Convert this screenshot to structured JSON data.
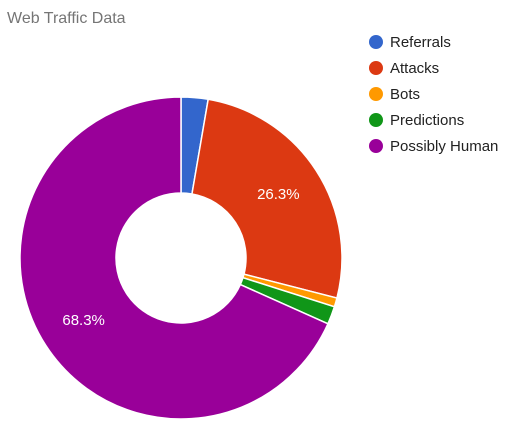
{
  "chart_data": {
    "type": "pie",
    "style": "donut",
    "title": "Web Traffic Data",
    "legend_position": "right",
    "slices": [
      {
        "label": "Referrals",
        "value": 2.7,
        "color": "#3366cc"
      },
      {
        "label": "Attacks",
        "value": 26.3,
        "color": "#dc3912",
        "data_label": "26.3%"
      },
      {
        "label": "Bots",
        "value": 0.9,
        "color": "#ff9900"
      },
      {
        "label": "Predictions",
        "value": 1.8,
        "color": "#109618"
      },
      {
        "label": "Possibly Human",
        "value": 68.3,
        "color": "#990099",
        "data_label": "68.3%"
      }
    ]
  }
}
